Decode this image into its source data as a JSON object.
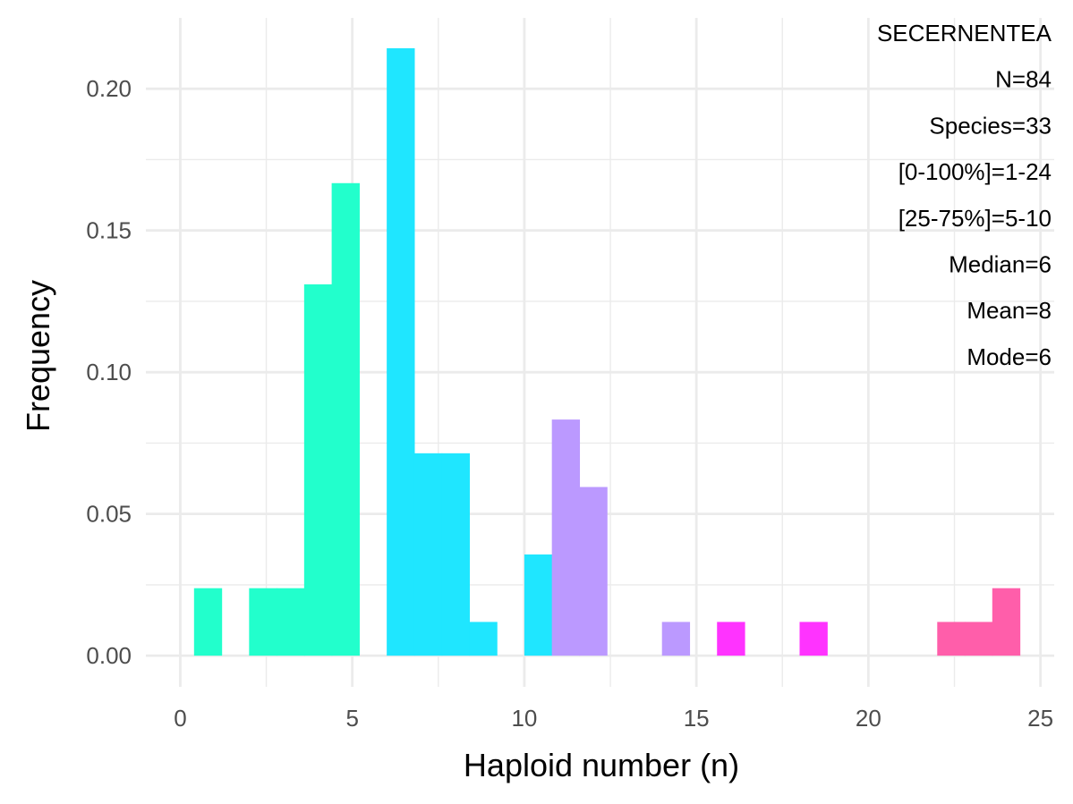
{
  "chart_data": {
    "type": "bar",
    "title": "",
    "xlabel": "Haploid number (n)",
    "ylabel": "Frequency",
    "xlim": [
      -1.0,
      25.4
    ],
    "ylim": [
      -0.011,
      0.225
    ],
    "x_ticks": [
      0,
      5,
      10,
      15,
      20,
      25
    ],
    "x_tick_labels": [
      "0",
      "5",
      "10",
      "15",
      "20",
      "25"
    ],
    "y_ticks": [
      0.0,
      0.05,
      0.1,
      0.15,
      0.2
    ],
    "y_tick_labels": [
      "0.00",
      "0.05",
      "0.10",
      "0.15",
      "0.20"
    ],
    "grid": true,
    "legend": "none",
    "annotations": [
      "SECERNENTEA",
      "N=84",
      "Species=33",
      "[0-100%]=1-24",
      "[25-75%]=5-10",
      "Median=6",
      "Mean=8",
      "Mode=6"
    ],
    "annotation_position": "top-right",
    "bars": [
      {
        "x0": 0.4,
        "x1": 1.2,
        "value": 0.0238,
        "color": "#22FFCC"
      },
      {
        "x0": 2.0,
        "x1": 2.8,
        "value": 0.0238,
        "color": "#22FFCC"
      },
      {
        "x0": 2.8,
        "x1": 3.6,
        "value": 0.0238,
        "color": "#22FFCC"
      },
      {
        "x0": 3.6,
        "x1": 4.4,
        "value": 0.131,
        "color": "#22FFCC"
      },
      {
        "x0": 4.4,
        "x1": 5.2,
        "value": 0.1667,
        "color": "#22FFCC"
      },
      {
        "x0": 6.0,
        "x1": 6.8,
        "value": 0.2143,
        "color": "#1FE6FF"
      },
      {
        "x0": 6.8,
        "x1": 7.6,
        "value": 0.0714,
        "color": "#1FE6FF"
      },
      {
        "x0": 7.6,
        "x1": 8.4,
        "value": 0.0714,
        "color": "#1FE6FF"
      },
      {
        "x0": 8.4,
        "x1": 9.2,
        "value": 0.0119,
        "color": "#1FE6FF"
      },
      {
        "x0": 10.0,
        "x1": 10.8,
        "value": 0.0357,
        "color": "#1FE6FF"
      },
      {
        "x0": 10.8,
        "x1": 11.6,
        "value": 0.0833,
        "color": "#BB99FF"
      },
      {
        "x0": 11.6,
        "x1": 12.4,
        "value": 0.0595,
        "color": "#BB99FF"
      },
      {
        "x0": 14.0,
        "x1": 14.8,
        "value": 0.0119,
        "color": "#BB99FF"
      },
      {
        "x0": 15.6,
        "x1": 16.4,
        "value": 0.0119,
        "color": "#FF33FF"
      },
      {
        "x0": 18.0,
        "x1": 18.8,
        "value": 0.0119,
        "color": "#FF33FF"
      },
      {
        "x0": 22.0,
        "x1": 22.8,
        "value": 0.0119,
        "color": "#FF5EAA"
      },
      {
        "x0": 22.8,
        "x1": 23.6,
        "value": 0.0119,
        "color": "#FF5EAA"
      },
      {
        "x0": 23.6,
        "x1": 24.4,
        "value": 0.0238,
        "color": "#FF5EAA"
      }
    ]
  }
}
